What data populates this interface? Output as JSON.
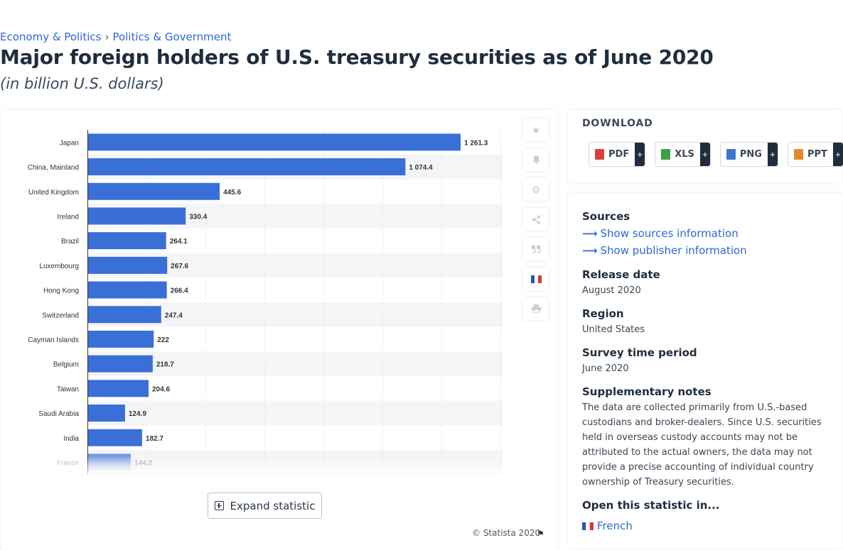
{
  "breadcrumb": {
    "item1": "Economy & Politics",
    "sep": "›",
    "item2": "Politics & Government"
  },
  "title": "Major foreign holders of U.S. treasury securities as of June 2020",
  "subtitle": "(in billion U.S. dollars)",
  "chart_data": {
    "type": "bar",
    "orientation": "horizontal",
    "categories": [
      "Japan",
      "China, Mainland",
      "United Kingdom",
      "Ireland",
      "Brazil",
      "Luxembourg",
      "Hong Kong",
      "Switzerland",
      "Cayman Islands",
      "Belgium",
      "Taiwan",
      "Saudi Arabia",
      "India",
      "France"
    ],
    "values": [
      1261.3,
      1074.4,
      445.6,
      330.4,
      264.1,
      267.6,
      266.4,
      247.4,
      222,
      218.7,
      204.6,
      124.9,
      182.7,
      144.2
    ],
    "value_labels": [
      "1 261.3",
      "1 074.4",
      "445.6",
      "330.4",
      "264.1",
      "267.6",
      "266.4",
      "247.4",
      "222",
      "218.7",
      "204.6",
      "124.9",
      "182.7",
      "144.2"
    ],
    "xlim": [
      0,
      1400
    ],
    "grid": true,
    "bar_color": "#3b6fd8",
    "faded_last_bar": true
  },
  "expand_label": "Expand statistic",
  "copyright": "© Statista 2020",
  "tools": [
    "star-icon",
    "bell-icon",
    "gear-icon",
    "share-icon",
    "quote-icon",
    "french-flag-icon",
    "print-icon"
  ],
  "download": {
    "title": "DOWNLOAD",
    "buttons": [
      {
        "label": "PDF",
        "color": "#d9413a"
      },
      {
        "label": "XLS",
        "color": "#3aa047"
      },
      {
        "label": "PNG",
        "color": "#3b77c9"
      },
      {
        "label": "PPT",
        "color": "#e58a2c"
      }
    ],
    "plus": "+"
  },
  "info": {
    "sources_heading": "Sources",
    "show_sources": "Show sources information",
    "show_publisher": "Show publisher information",
    "release_heading": "Release date",
    "release_value": "August 2020",
    "region_heading": "Region",
    "region_value": "United States",
    "survey_heading": "Survey time period",
    "survey_value": "June 2020",
    "notes_heading": "Supplementary notes",
    "notes_lines": [
      "The data are collected primarily from U.S.-based",
      "custodians and broker-dealers. Since U.S. securities",
      "held in overseas custody accounts may not be",
      "attributed to the actual owners, the data may not",
      "provide a precise accounting of individual country",
      "ownership of Treasury securities."
    ],
    "open_heading": "Open this statistic in...",
    "open_french": "French"
  }
}
